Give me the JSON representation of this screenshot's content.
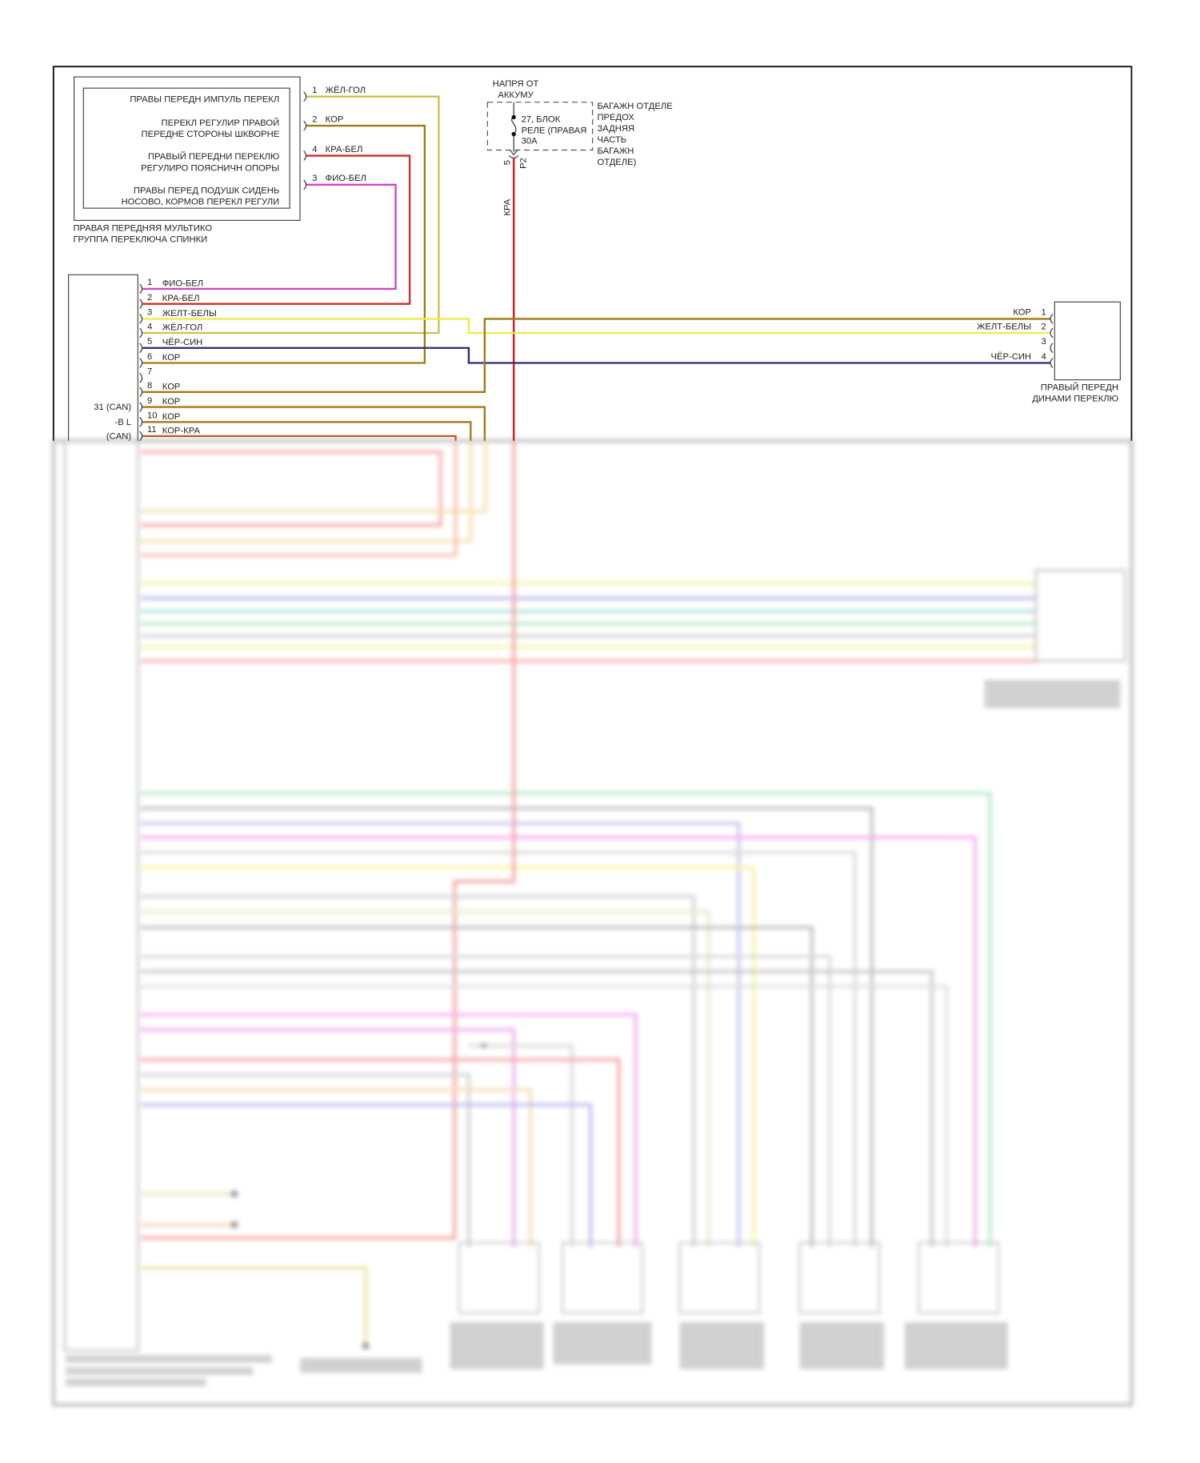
{
  "colors": {
    "ЖЁЛ-ГОЛ": "#c8c24a",
    "КОР": "#a27a12",
    "КРА-БЕЛ": "#d22a2a",
    "ФИО-БЕЛ": "#cc44cc",
    "ЖЕЛТ-БЕЛЫ": "#eeea4a",
    "ЧЁР-СИН": "#2a2a70",
    "КОР-КРА": "#c05a20",
    "КРА": "#d21a1a"
  },
  "switch_group": {
    "functions": [
      [
        "ПРАВЫ ПЕРЕДН ИМПУЛЬ ПЕРЕКЛ"
      ],
      [
        "ПЕРЕКЛ РЕГУЛИР ПРАВОЙ",
        "ПЕРЕДНЕ СТОРОНЫ ШКВОРНЕ"
      ],
      [
        "ПРАВЫЙ ПЕРЕДНИ ПЕРЕКЛЮ",
        "РЕГУЛИРО ПОЯСНИЧН ОПОРЫ"
      ],
      [
        "ПРАВЫ ПЕРЕД ПОДУШК СИДЕНЬ",
        "НОСОВО, КОРМОВ ПЕРЕКЛ РЕГУЛИ"
      ]
    ],
    "caption": [
      "ПРАВАЯ ПЕРЕДНЯЯ МУЛЬТИКО",
      "ГРУППА ПЕРЕКЛЮЧА СПИНКИ"
    ],
    "pins": [
      {
        "num": "1",
        "wire": "ЖЁЛ-ГОЛ"
      },
      {
        "num": "2",
        "wire": "КОР"
      },
      {
        "num": "4",
        "wire": "КРА-БЕЛ"
      },
      {
        "num": "3",
        "wire": "ФИО-БЕЛ"
      }
    ]
  },
  "fuse": {
    "supply": [
      "НАПРЯ ОТ",
      "АККУМУ"
    ],
    "label": [
      "27, БЛОК",
      "РЕЛЕ (ПРАВАЯ",
      "30A"
    ],
    "location": [
      "БАГАЖН ОТДЕЛЕ",
      "ПРЕДОХ",
      "ЗАДНЯЯ",
      "ЧАСТЬ",
      "БАГАЖН",
      "ОТДЕЛЕ)"
    ],
    "pin": "5",
    "connector": "P2",
    "wire": "КРА"
  },
  "module": {
    "side_labels": [
      "31 (CAN)",
      "-B L",
      "(CAN)"
    ],
    "pins": [
      {
        "num": "1",
        "wire": "ФИО-БЕЛ"
      },
      {
        "num": "2",
        "wire": "КРА-БЕЛ"
      },
      {
        "num": "3",
        "wire": "ЖЕЛТ-БЕЛЫ"
      },
      {
        "num": "4",
        "wire": "ЖЁЛ-ГОЛ"
      },
      {
        "num": "5",
        "wire": "ЧЁР-СИН"
      },
      {
        "num": "6",
        "wire": "КОР"
      },
      {
        "num": "7",
        "wire": ""
      },
      {
        "num": "8",
        "wire": "КОР"
      },
      {
        "num": "9",
        "wire": "КОР"
      },
      {
        "num": "10",
        "wire": "КОР"
      },
      {
        "num": "11",
        "wire": "КОР-КРА"
      }
    ]
  },
  "dynamic_switch": {
    "caption": [
      "ПРАВЫЙ ПЕРЕДН",
      "ДИНАМИ ПЕРЕКЛЮ"
    ],
    "pins": [
      {
        "num": "1",
        "wire": "КОР"
      },
      {
        "num": "2",
        "wire": "ЖЕЛТ-БЕЛЫ"
      },
      {
        "num": "3",
        "wire": ""
      },
      {
        "num": "4",
        "wire": "ЧЁР-СИН"
      }
    ]
  }
}
